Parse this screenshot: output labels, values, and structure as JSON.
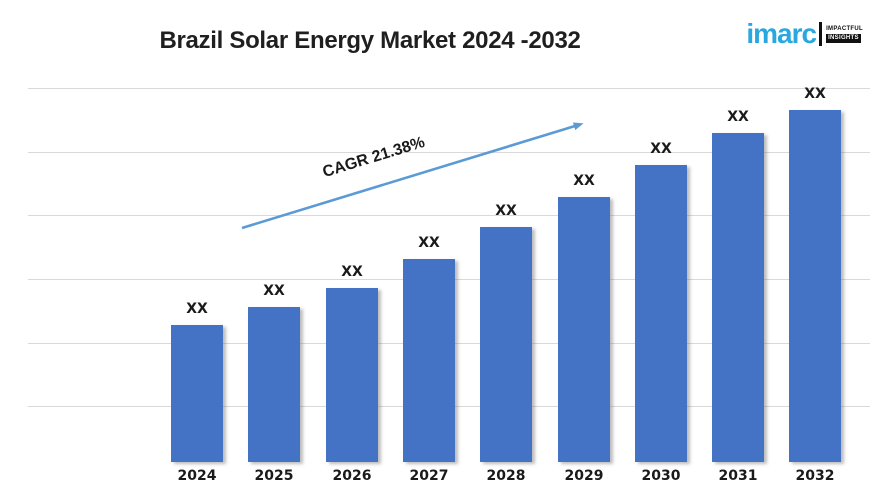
{
  "header": {
    "title": "Brazil Solar Energy Market 2024 -2032",
    "logo": {
      "brand": "imarc",
      "tagline_line1": "IMPACTFUL",
      "tagline_line2": "INSIGHTS"
    }
  },
  "annotation": {
    "cagr_label": "CAGR 21.38%"
  },
  "chart_data": {
    "type": "bar",
    "title": "Brazil Solar Energy Market 2024 -2032",
    "categories": [
      "2024",
      "2025",
      "2026",
      "2027",
      "2028",
      "2029",
      "2030",
      "2031",
      "2032"
    ],
    "bar_value_labels": [
      "XX",
      "XX",
      "XX",
      "XX",
      "XX",
      "XX",
      "XX",
      "XX",
      "XX"
    ],
    "values_masked_as": "XX",
    "relative_heights_pct": [
      35.9,
      40.6,
      45.5,
      53.1,
      61.5,
      69.4,
      77.7,
      86.1,
      92.1
    ],
    "xlabel": "",
    "ylabel": "",
    "y_axis_labels_visible": false,
    "grid": "horizontal",
    "gridline_count": 6,
    "legend": "none",
    "annotations": [
      {
        "type": "trend_arrow",
        "text": "CAGR 21.38%",
        "direction": "up-right"
      }
    ],
    "colors": {
      "bar": "#4472c4",
      "trend_arrow": "#5b9bd5",
      "gridline": "#d9d9d9",
      "title_text": "#1f1f1f",
      "label_text": "#1a1a1a",
      "logo_blue": "#29a8df",
      "background": "#ffffff"
    }
  }
}
